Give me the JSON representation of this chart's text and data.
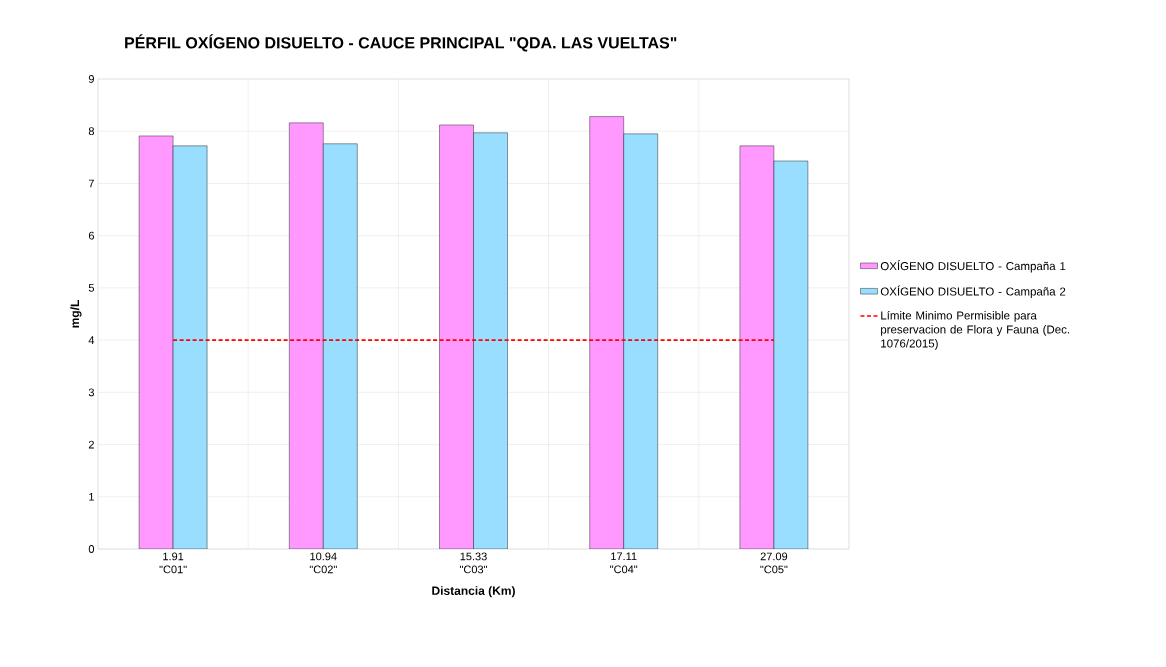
{
  "chart_data": {
    "type": "bar",
    "title": "PÉRFIL OXÍGENO DISUELTO - CAUCE PRINCIPAL \"QDA. LAS VUELTAS\"",
    "xlabel": "Distancia (Km)",
    "ylabel": "mg/L",
    "categories": [
      "1.91 \"C01\"",
      "10.94 \"C02\"",
      "15.33 \"C03\"",
      "17.11 \"C04\"",
      "27.09 \"C05\""
    ],
    "series": [
      {
        "name": "OXÍGENO DISUELTO - Campaña 1",
        "color": "#ff99ff",
        "values": [
          7.91,
          8.16,
          8.12,
          8.28,
          7.72
        ]
      },
      {
        "name": "OXÍGENO DISUELTO - Campaña 2",
        "color": "#99ddff",
        "values": [
          7.72,
          7.76,
          7.97,
          7.95,
          7.43
        ]
      },
      {
        "name": "Límite Minimo Permisible para preservacion de Flora y Fauna (Dec. 1076/2015)",
        "type": "line",
        "line_style": "dashed",
        "color": "#ff0000",
        "values": [
          4,
          4,
          4,
          4,
          4
        ]
      }
    ],
    "ylim": [
      0,
      9
    ],
    "yticks": [
      0,
      1,
      2,
      3,
      4,
      5,
      6,
      7,
      8,
      9
    ],
    "grid": true,
    "legend": "right",
    "marker": "none"
  }
}
